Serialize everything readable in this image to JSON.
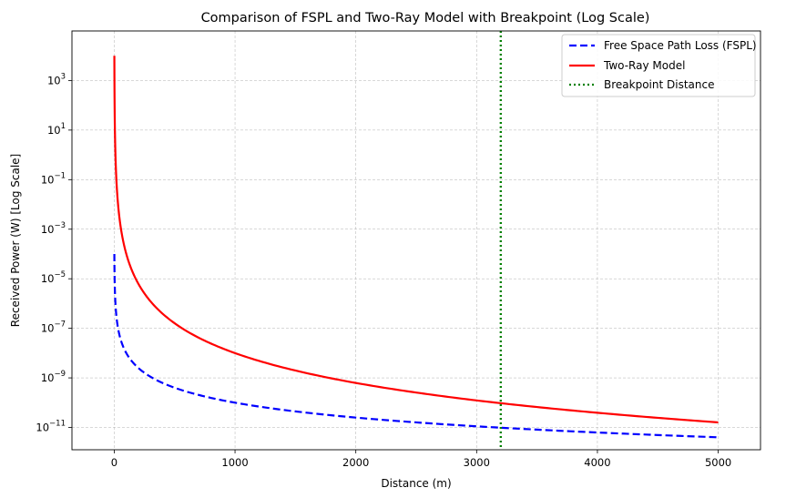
{
  "chart_data": {
    "type": "line",
    "title": "Comparison of FSPL and Two-Ray Model with Breakpoint (Log Scale)",
    "xlabel": "Distance (m)",
    "ylabel": "Received Power (W) [Log Scale]",
    "yscale": "log",
    "xlim": [
      -350,
      5350
    ],
    "ylim_log10": [
      -11.9,
      5.0
    ],
    "grid": true,
    "legend_position": "top-right",
    "x_ticks": [
      0,
      1000,
      2000,
      3000,
      4000,
      5000
    ],
    "x_tick_labels": [
      "0",
      "1000",
      "2000",
      "3000",
      "4000",
      "5000"
    ],
    "y_tick_exponents": [
      -11,
      -9,
      -7,
      -5,
      -3,
      -1,
      1,
      3
    ],
    "y_tick_base": "10",
    "series": [
      {
        "name": "Free Space Path Loss (FSPL)",
        "color": "#0000ff",
        "style": "dashed",
        "model": "inverse-square",
        "x": [
          1,
          2,
          5,
          10,
          20,
          50,
          100,
          200,
          300,
          500,
          700,
          1000,
          1500,
          2000,
          2500,
          3000,
          3500,
          4000,
          4500,
          5000
        ],
        "y": [
          0.0001,
          2.5e-05,
          4e-06,
          1e-06,
          2.5e-07,
          4e-08,
          1e-08,
          2.5e-09,
          1.11e-09,
          4e-10,
          2.04e-10,
          1e-10,
          4.44e-11,
          2.5e-11,
          1.6e-11,
          1.11e-11,
          8.16e-12,
          6.25e-12,
          4.94e-12,
          4e-12
        ]
      },
      {
        "name": "Two-Ray Model",
        "color": "#ff0000",
        "style": "solid",
        "model": "inverse-fourth-power",
        "x": [
          1,
          1.5,
          2,
          3,
          5,
          10,
          20,
          50,
          100,
          200,
          300,
          500,
          700,
          1000,
          1500,
          2000,
          2500,
          3000,
          3500,
          4000,
          4500,
          5000
        ],
        "y": [
          10000.0,
          1980.0,
          625.0,
          123.0,
          16.0,
          1.0,
          0.0625,
          0.0016,
          0.0001,
          6.25e-06,
          1.23e-06,
          1.6e-07,
          4.16e-08,
          1e-08,
          1.98e-09,
          6.25e-10,
          2.56e-10,
          1.23e-10,
          6.66e-11,
          3.91e-11,
          2.44e-11,
          1.6e-11
        ]
      }
    ],
    "vlines": [
      {
        "name": "Breakpoint Distance",
        "x": 3200,
        "color": "#008000",
        "style": "dotted"
      }
    ]
  }
}
